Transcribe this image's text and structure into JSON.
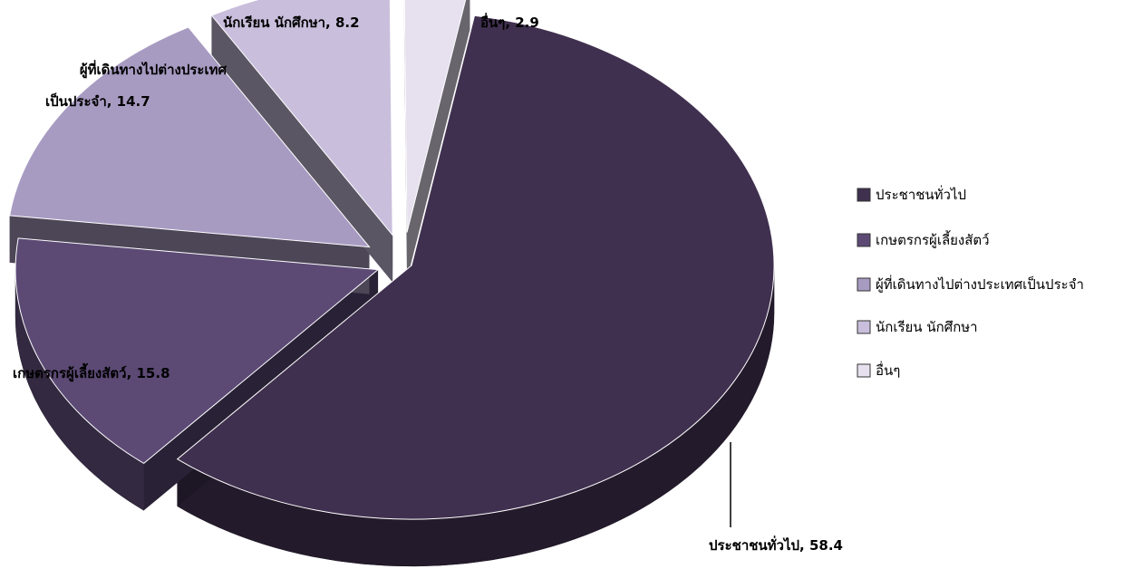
{
  "chart_data": {
    "type": "pie",
    "style": "3d-exploded",
    "title": "",
    "legend_position": "right",
    "categories": [
      "ประชาชนทั่วไป",
      "เกษตรกรผู้เลี้ยงสัตว์",
      "ผู้ที่เดินทางไปต่างประเทศเป็นประจำ",
      "นักเรียน นักศึกษา",
      "อื่นๆ"
    ],
    "values": [
      58.4,
      15.8,
      14.7,
      8.2,
      2.9
    ],
    "data_labels": [
      "ประชาชนทั่วไป, 58.4",
      "เกษตรกรผู้เลี้ยงสัตว์, 15.8",
      [
        "ผู้ที่เดินทางไปต่างประเทศ",
        "เป็นประจำ, 14.7"
      ],
      "นักเรียน นักศึกษา, 8.2",
      "อื่นๆ, 2.9"
    ],
    "colors": [
      "#40304f",
      "#5c4a75",
      "#a89bc2",
      "#c9bfdc",
      "#e6e0ef"
    ]
  }
}
